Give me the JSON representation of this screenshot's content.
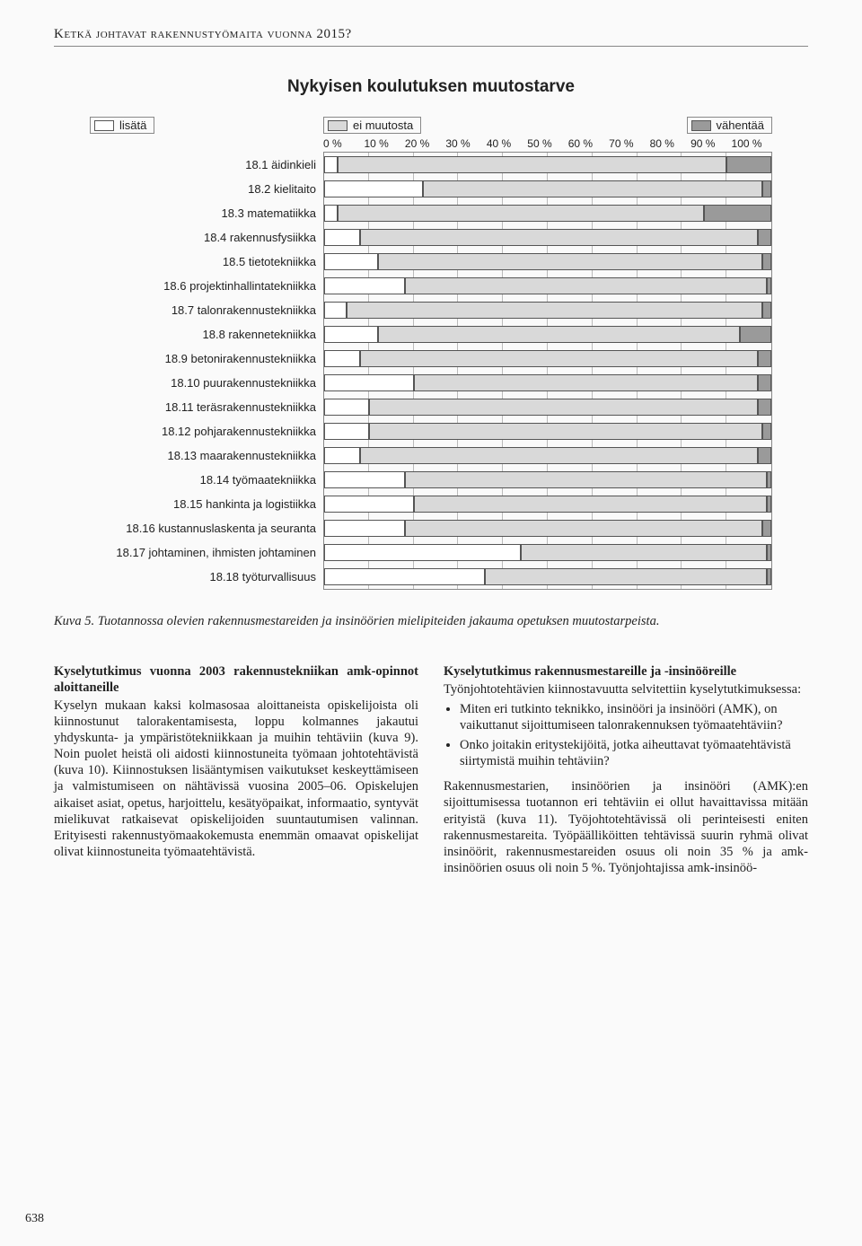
{
  "running_head": "Ketkä johtavat rakennustyömaita vuonna 2015?",
  "page_number": "638",
  "chart": {
    "type": "stacked-horizontal-bar",
    "title": "Nykyisen koulutuksen muutostarve",
    "legend": {
      "s1": "lisätä",
      "s2": "ei muutosta",
      "s3": "vähentää"
    },
    "colors": {
      "s1": "#ffffff",
      "s2": "#d9d9d9",
      "s3": "#9a9a9a"
    },
    "border_color": "#555555",
    "grid_color": "#bbbbbb",
    "background": "#fafafa",
    "xticks": [
      "0 %",
      "10 %",
      "20 %",
      "30 %",
      "40 %",
      "50 %",
      "60 %",
      "70 %",
      "80 %",
      "90 %",
      "100 %"
    ],
    "xlim": [
      0,
      100
    ],
    "label_fontsize": 13,
    "rows": [
      {
        "label": "18.1 äidinkieli",
        "s1": 3,
        "s2": 87,
        "s3": 10
      },
      {
        "label": "18.2 kielitaito",
        "s1": 22,
        "s2": 76,
        "s3": 2
      },
      {
        "label": "18.3 matematiikka",
        "s1": 3,
        "s2": 82,
        "s3": 15
      },
      {
        "label": "18.4 rakennusfysiikka",
        "s1": 8,
        "s2": 89,
        "s3": 3
      },
      {
        "label": "18.5 tietotekniikka",
        "s1": 12,
        "s2": 86,
        "s3": 2
      },
      {
        "label": "18.6 projektinhallintatekniikka",
        "s1": 18,
        "s2": 81,
        "s3": 1
      },
      {
        "label": "18.7 talonrakennustekniikka",
        "s1": 5,
        "s2": 93,
        "s3": 2
      },
      {
        "label": "18.8 rakennetekniikka",
        "s1": 12,
        "s2": 81,
        "s3": 7
      },
      {
        "label": "18.9 betonirakennustekniikka",
        "s1": 8,
        "s2": 89,
        "s3": 3
      },
      {
        "label": "18.10 puurakennustekniikka",
        "s1": 20,
        "s2": 77,
        "s3": 3
      },
      {
        "label": "18.11 teräsrakennustekniikka",
        "s1": 10,
        "s2": 87,
        "s3": 3
      },
      {
        "label": "18.12 pohjarakennustekniikka",
        "s1": 10,
        "s2": 88,
        "s3": 2
      },
      {
        "label": "18.13 maarakennustekniikka",
        "s1": 8,
        "s2": 89,
        "s3": 3
      },
      {
        "label": "18.14 työmaatekniikka",
        "s1": 18,
        "s2": 81,
        "s3": 1
      },
      {
        "label": "18.15 hankinta ja logistiikka",
        "s1": 20,
        "s2": 79,
        "s3": 1
      },
      {
        "label": "18.16 kustannuslaskenta ja seuranta",
        "s1": 18,
        "s2": 80,
        "s3": 2
      },
      {
        "label": "18.17 johtaminen, ihmisten johtaminen",
        "s1": 44,
        "s2": 55,
        "s3": 1
      },
      {
        "label": "18.18 työturvallisuus",
        "s1": 36,
        "s2": 63,
        "s3": 1
      }
    ]
  },
  "caption": "Kuva 5. Tuotannossa olevien rakennusmestareiden ja insinöörien mielipiteiden jakauma opetuksen muutostarpeista.",
  "left_col": {
    "heading": "Kyselytutkimus vuonna 2003 rakennustekniikan amk-opinnot aloittaneille",
    "body": "Kyselyn mukaan kaksi kolmasosaa aloittaneista opiskelijoista oli kiinnostunut talorakentamisesta, loppu kolmannes jakautui yhdyskunta- ja ympäristötekniikkaan ja muihin tehtäviin (kuva 9). Noin puolet heistä oli aidosti kiinnostuneita työmaan johtotehtävistä (kuva 10). Kiinnostuksen lisääntymisen vaikutukset keskeyttämiseen ja valmistumiseen on nähtävissä vuosina 2005–06. Opiskelujen aikaiset asiat, opetus, harjoittelu, kesätyöpaikat, informaatio, syntyvät mielikuvat ratkaisevat opiskelijoiden suuntautumisen valinnan. Erityisesti rakennustyömaakokemusta enemmän omaavat opiskelijat olivat kiinnostuneita työmaatehtävistä."
  },
  "right_col": {
    "heading": "Kyselytutkimus rakennusmestareille ja -insinööreille",
    "intro": "Työnjohtotehtävien kiinnostavuutta selvitettiin kyselytutkimuksessa:",
    "bullets": [
      "Miten eri tutkinto teknikko, insinööri ja insinööri (AMK), on vaikuttanut sijoittumiseen talonrakennuksen työmaatehtäviin?",
      "Onko joitakin eritystekijöitä, jotka aiheuttavat työmaatehtävistä siirtymistä muihin tehtäviin?"
    ],
    "body2": "Rakennusmestarien, insinöörien ja insinööri (AMK):en sijoittumisessa tuotannon eri tehtäviin ei ollut havaittavissa mitään erityistä (kuva 11). Työjohtotehtävissä oli perinteisesti eniten rakennusmesta­reita. Työpäälliköitten tehtävissä suurin ryhmä olivat insinöörit, rakennusmestareiden osuus oli noin 35 % ja amk-insinöörien osuus oli noin 5 %. Työnjohtajissa amk-insinöö-"
  }
}
